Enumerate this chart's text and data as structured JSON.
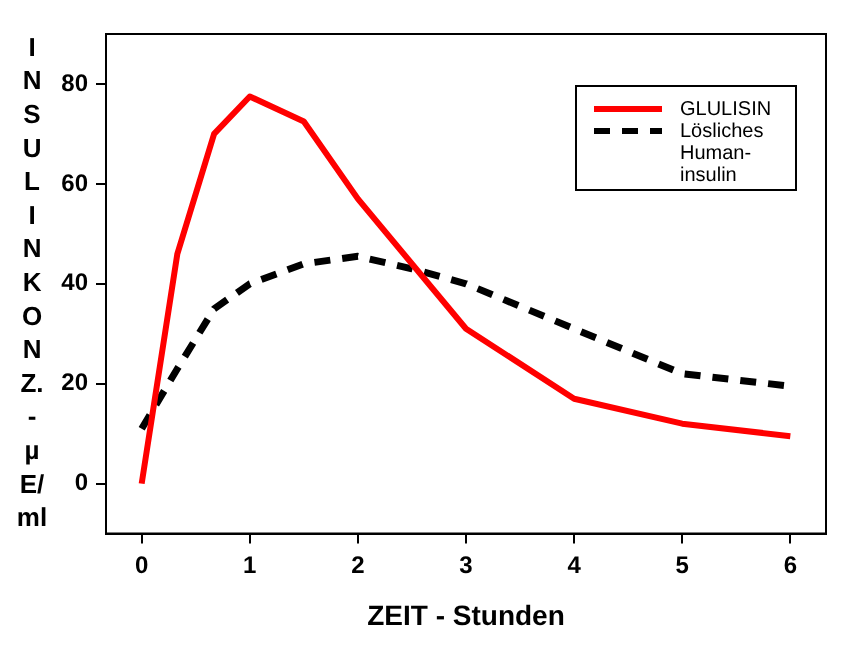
{
  "chart_data": {
    "type": "line",
    "xlabel": "ZEIT - Stunden",
    "ylabel": "INSULINKONZ. - µE/ml",
    "xlim": [
      -0.33,
      6.33
    ],
    "xticks": [
      0,
      1,
      2,
      3,
      4,
      5,
      6
    ],
    "ylim": [
      -10,
      90
    ],
    "yticks": [
      0,
      20,
      40,
      60,
      80
    ],
    "grid": false,
    "legend": "top right",
    "marker": "none",
    "series": [
      {
        "name": "GLULISIN",
        "color": "#ff0000",
        "line_style": "solid",
        "x": [
          0,
          0.33,
          0.67,
          1,
          1.5,
          2,
          3,
          4,
          5,
          6
        ],
        "values": [
          0,
          46,
          70,
          77.5,
          72.5,
          57,
          31,
          17,
          12,
          9.5
        ]
      },
      {
        "name": "Lösliches Human-insulin",
        "color": "#000000",
        "line_style": "dashed",
        "x": [
          0,
          0.33,
          0.67,
          1,
          1.5,
          2,
          2.5,
          3,
          4,
          5,
          6
        ],
        "values": [
          11,
          23,
          35,
          40,
          44,
          45.5,
          43,
          40,
          31,
          22,
          19.5
        ]
      }
    ]
  }
}
